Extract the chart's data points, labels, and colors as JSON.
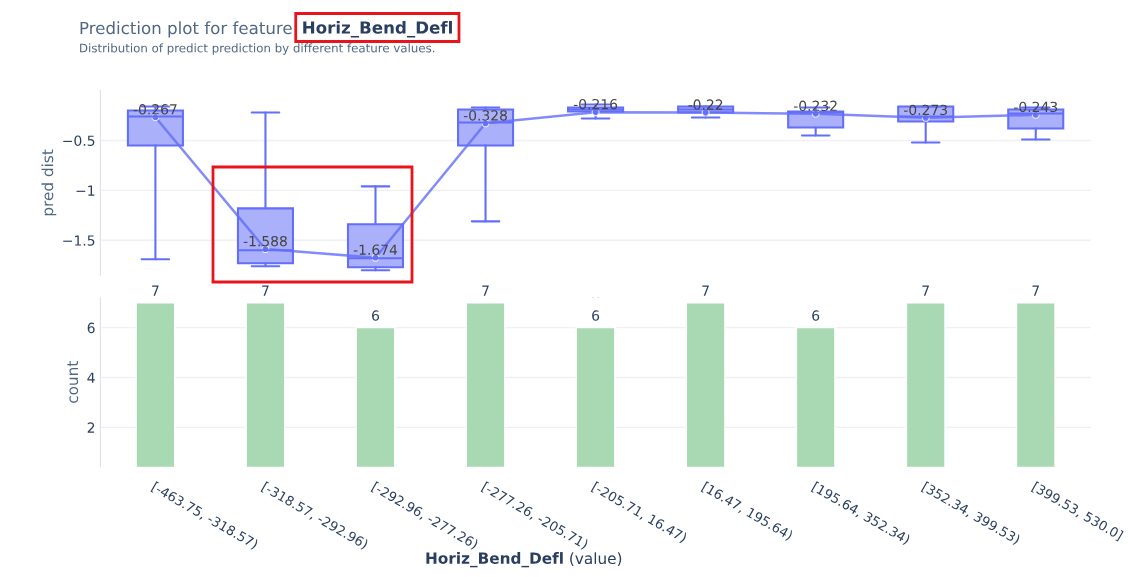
{
  "chart_data": [
    {
      "type": "box",
      "title": "Prediction plot for feature Horiz_Bend_Defl",
      "subtitle": "Distribution of predict prediction by different feature values.",
      "ylabel": "pred dist",
      "categories": [
        null,
        null,
        null,
        null,
        null,
        null,
        null,
        null,
        null
      ],
      "color": "#636efa",
      "boxes": [
        {
          "low": -1.69,
          "q1": -0.55,
          "median": -0.26,
          "q3": -0.2,
          "high": -0.16
        },
        {
          "low": -1.76,
          "q1": -1.73,
          "median": -1.6,
          "q3": -1.18,
          "high": -0.22
        },
        {
          "low": -1.8,
          "q1": -1.77,
          "median": -1.68,
          "q3": -1.34,
          "high": -0.96
        },
        {
          "low": -1.31,
          "q1": -0.55,
          "median": -0.32,
          "q3": -0.19,
          "high": -0.17
        },
        {
          "low": -0.28,
          "q1": -0.21,
          "median": -0.19,
          "q3": -0.17,
          "high": -0.14
        },
        {
          "low": -0.27,
          "q1": -0.22,
          "median": -0.19,
          "q3": -0.16,
          "high": -0.16
        },
        {
          "low": -0.45,
          "q1": -0.37,
          "median": -0.22,
          "q3": -0.21,
          "high": -0.17
        },
        {
          "low": -0.52,
          "q1": -0.31,
          "median": -0.26,
          "q3": -0.16,
          "high": -0.16
        },
        {
          "low": -0.49,
          "q1": -0.38,
          "median": -0.23,
          "q3": -0.19,
          "high": -0.17
        }
      ],
      "series": [
        {
          "type": "line",
          "color": "#636efa",
          "marker": "circle",
          "values": [
            -0.267,
            -1.588,
            -1.674,
            -0.328,
            -0.216,
            -0.22,
            -0.232,
            -0.273,
            -0.243
          ],
          "value_labels": [
            "-0.267",
            "-1.588",
            "-1.674",
            "-0.328",
            "-0.216",
            "-0.22",
            "-0.232",
            "-0.273",
            "-0.243"
          ]
        }
      ],
      "ylim": [
        -1.85,
        0
      ],
      "yticks": [
        {
          "value": -1.5,
          "label": "−1.5"
        },
        {
          "value": -1,
          "label": "−1"
        },
        {
          "value": -0.5,
          "label": "−0.5"
        }
      ],
      "grid": "y",
      "legend": false
    },
    {
      "type": "bar",
      "xlabel": "Horiz_Bend_Defl (value)",
      "ylabel": "count",
      "categories": [
        "[-463.75, -318.57)",
        "[-318.57, -292.96)",
        "[-292.96, -277.26)",
        "[-277.26, -205.71)",
        "[-205.71, 16.47)",
        "[16.47, 195.64)",
        "[195.64, 352.34)",
        "[352.34, 399.53)",
        "[399.53, 530.0]"
      ],
      "values": [
        7,
        7,
        6,
        7,
        6,
        7,
        6,
        7,
        7
      ],
      "color": "#a9d9b3",
      "data_labels": true,
      "ylim": [
        0.42,
        7.2
      ],
      "yticks": [
        2,
        4,
        6
      ],
      "grid": "y",
      "legend": false
    }
  ]
}
